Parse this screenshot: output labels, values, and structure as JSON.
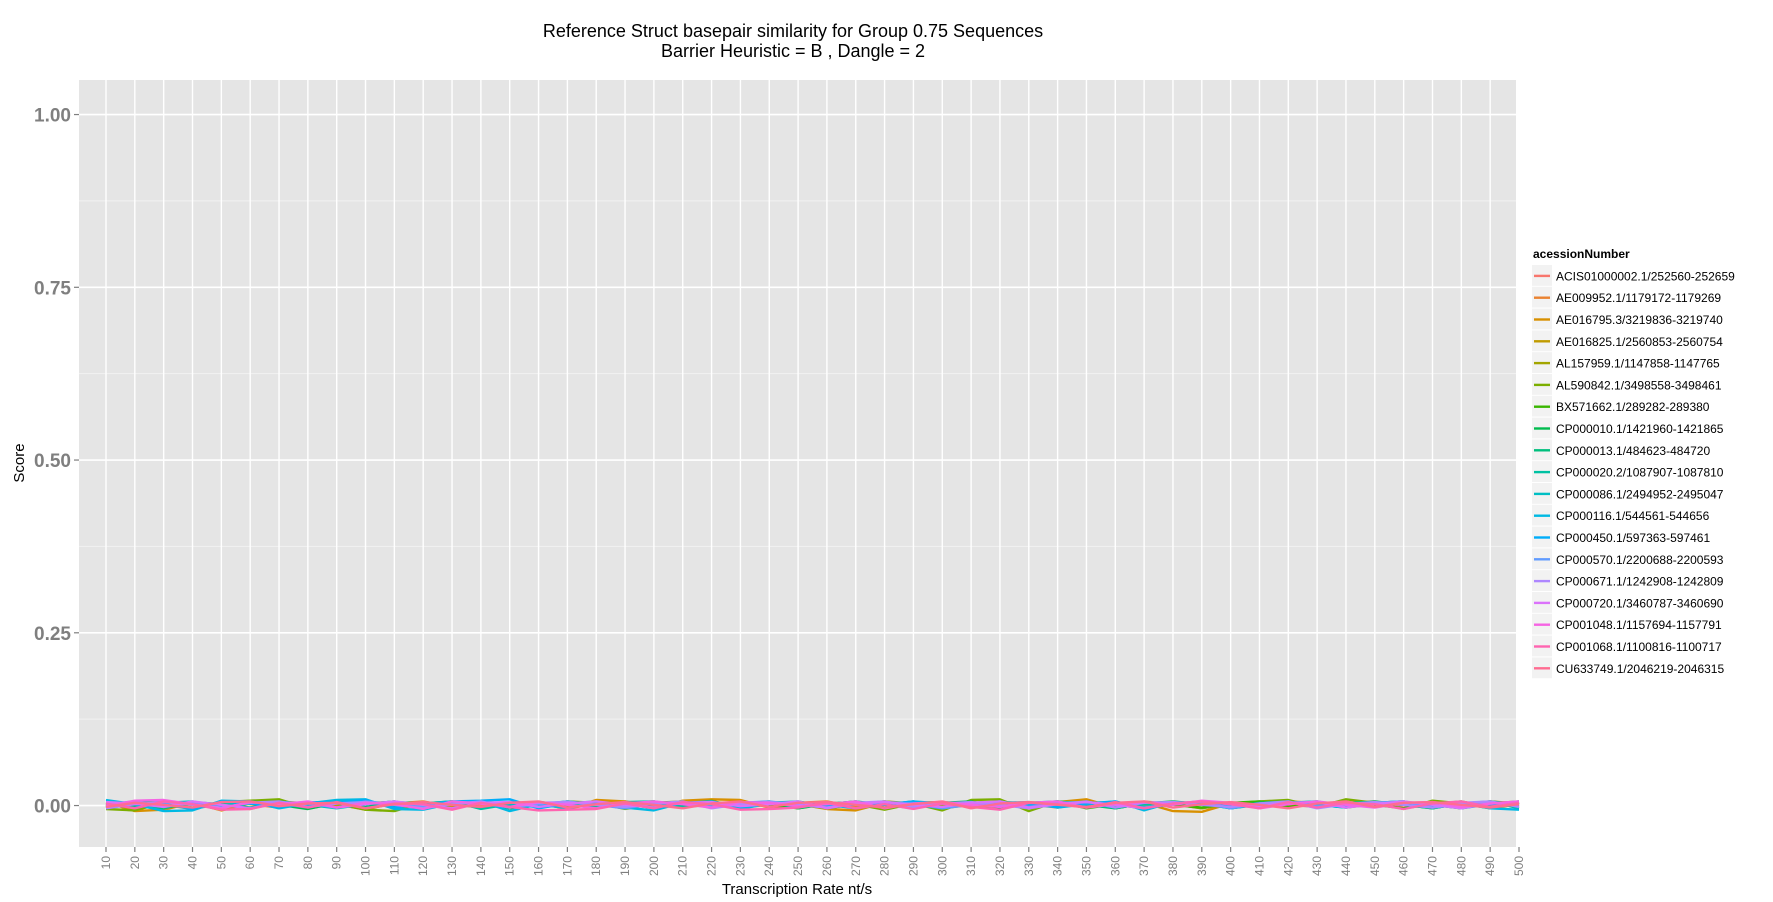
{
  "chart_data": {
    "type": "line",
    "title": "Reference Struct basepair similarity for Group 0.75 Sequences",
    "subtitle": "Barrier Heuristic =  B  , Dangle =  2",
    "xlabel": "Transcription Rate nt/s",
    "ylabel": "Score",
    "ylim": [
      -0.06,
      1.05
    ],
    "yticks": [
      "0.00",
      "0.25",
      "0.50",
      "0.75",
      "1.00"
    ],
    "x": [
      10,
      20,
      30,
      40,
      50,
      60,
      70,
      80,
      90,
      100,
      110,
      120,
      130,
      140,
      150,
      160,
      170,
      180,
      190,
      200,
      210,
      220,
      230,
      240,
      250,
      260,
      270,
      280,
      290,
      300,
      310,
      320,
      330,
      340,
      350,
      360,
      370,
      380,
      390,
      400,
      410,
      420,
      430,
      440,
      450,
      460,
      470,
      480,
      490,
      500
    ],
    "grid": true,
    "legend_title": "acessionNumber",
    "legend_position": "right",
    "note_values": "all series fluctuate between about -0.01 and 0.01",
    "series": [
      {
        "name": "ACIS01000002.1/252560-252659",
        "color": "#F8766D",
        "values": [
          0.003,
          -0.004,
          0.006,
          0.002,
          -0.005,
          0.004,
          0.007,
          -0.002,
          0.003,
          0.005,
          -0.003,
          0.002,
          0.006,
          0.001,
          -0.004,
          0.003,
          0.005,
          -0.002,
          0.004,
          0.002,
          0.006,
          -0.003,
          0.001,
          0.005,
          0.003,
          -0.004,
          0.002,
          0.006,
          -0.001,
          0.004,
          0.003,
          -0.002,
          0.005,
          0.001,
          0.004,
          -0.003,
          0.006,
          0.002,
          -0.004,
          0.003,
          0.005,
          0.001,
          -0.002,
          0.004,
          0.006,
          -0.003,
          0.002,
          0.005,
          0.001,
          0.004
        ]
      },
      {
        "name": "AE009952.1/1179172-1179269",
        "color": "#EA8331",
        "values": [
          -0.002,
          0.004,
          0.001,
          -0.005,
          0.006,
          0.002,
          -0.003,
          0.005,
          0.001,
          -0.004,
          0.003,
          0.006,
          -0.002,
          0.004,
          0.001,
          0.005,
          -0.004,
          0.002,
          0.006,
          -0.001,
          0.003,
          0.005,
          -0.003,
          0.001,
          0.004,
          0.006,
          -0.002,
          0.003,
          0.005,
          -0.004,
          0.001,
          0.006,
          0.002,
          -0.003,
          0.004,
          0.005,
          -0.001,
          0.002,
          0.006,
          -0.004,
          0.003,
          0.001,
          0.005,
          -0.002,
          0.004,
          0.006,
          -0.003,
          0.002,
          0.005,
          0.001
        ]
      },
      {
        "name": "AE016795.3/3219836-3219740",
        "color": "#D89000",
        "values": [
          0.005,
          -0.008,
          -0.006,
          0.004,
          -0.007,
          0.003,
          0.006,
          -0.004,
          0.002,
          -0.006,
          0.004,
          0.001,
          -0.003,
          0.005,
          -0.002,
          0.003,
          -0.005,
          0.008,
          0.006,
          -0.004,
          0.007,
          0.009,
          0.008,
          -0.003,
          0.002,
          -0.005,
          -0.007,
          0.004,
          -0.002,
          0.003,
          0.001,
          -0.004,
          0.002,
          0.005,
          0.009,
          -0.003,
          0.004,
          -0.008,
          -0.009,
          0.003,
          0.001,
          0.006,
          0.004,
          -0.002,
          0.003,
          0.005,
          0.002,
          -0.004,
          0.006,
          0.003
        ]
      },
      {
        "name": "AE016825.1/2560853-2560754",
        "color": "#C09B00",
        "values": [
          -0.003,
          0.002,
          0.005,
          -0.004,
          0.003,
          0.006,
          -0.002,
          0.004,
          0.001,
          -0.005,
          0.003,
          0.002,
          0.006,
          -0.003,
          0.004,
          0.001,
          -0.002,
          0.005,
          0.003,
          -0.004,
          0.006,
          0.002,
          -0.001,
          0.004,
          0.005,
          -0.003,
          0.002,
          0.006,
          0.001,
          -0.004,
          0.003,
          0.005,
          -0.002,
          0.004,
          0.006,
          0.001,
          -0.003,
          0.002,
          0.005,
          -0.004,
          0.003,
          0.006,
          0.001,
          -0.002,
          0.004,
          0.005,
          -0.003,
          0.002,
          0.006,
          0.001
        ]
      },
      {
        "name": "AL157959.1/1147858-1147765",
        "color": "#A3A500",
        "values": [
          0.002,
          0.005,
          -0.003,
          0.004,
          0.001,
          -0.005,
          0.006,
          0.003,
          -0.002,
          0.004,
          0.005,
          -0.001,
          0.003,
          0.006,
          -0.004,
          0.002,
          0.005,
          0.001,
          -0.003,
          0.004,
          0.006,
          -0.002,
          0.003,
          0.005,
          0.001,
          -0.004,
          0.002,
          0.006,
          0.003,
          -0.001,
          0.004,
          0.005,
          -0.003,
          0.002,
          0.006,
          0.001,
          -0.004,
          0.003,
          0.005,
          0.002,
          -0.001,
          0.004,
          0.006,
          -0.003,
          0.002,
          0.005,
          0.001,
          -0.004,
          0.003,
          0.006
        ]
      },
      {
        "name": "AL590842.1/3498558-3498461",
        "color": "#7CAE00",
        "values": [
          -0.005,
          -0.007,
          0.004,
          -0.003,
          0.005,
          0.007,
          0.009,
          -0.004,
          0.003,
          -0.006,
          -0.008,
          0.004,
          0.002,
          -0.003,
          0.005,
          -0.002,
          0.006,
          0.004,
          -0.005,
          0.003,
          0.002,
          0.007,
          -0.004,
          0.005,
          -0.003,
          0.004,
          0.002,
          -0.006,
          0.003,
          -0.007,
          0.008,
          0.009,
          -0.008,
          0.006,
          0.004,
          -0.003,
          0.005,
          0.002,
          -0.004,
          0.003,
          0.006,
          0.008,
          -0.002,
          0.009,
          0.004,
          -0.005,
          0.007,
          0.003,
          -0.004,
          0.002
        ]
      },
      {
        "name": "BX571662.1/289282-289380",
        "color": "#39B600",
        "values": [
          0.003,
          -0.002,
          0.005,
          0.001,
          -0.004,
          0.006,
          0.002,
          -0.003,
          0.004,
          0.005,
          -0.001,
          0.003,
          0.006,
          -0.004,
          0.002,
          0.005,
          0.001,
          -0.003,
          0.004,
          0.006,
          -0.002,
          0.003,
          0.005,
          0.001,
          -0.004,
          0.002,
          0.006,
          -0.003,
          0.004,
          0.005,
          0.001,
          -0.002,
          0.003,
          0.006,
          -0.004,
          0.002,
          0.005,
          0.001,
          -0.003,
          0.004,
          0.006,
          -0.002,
          0.003,
          0.005,
          0.001,
          -0.004,
          0.002,
          0.006,
          -0.003,
          0.004
        ]
      },
      {
        "name": "CP000010.1/1421960-1421865",
        "color": "#00BB4E",
        "values": [
          -0.004,
          0.003,
          0.006,
          0.002,
          -0.003,
          0.005,
          0.001,
          -0.005,
          0.004,
          0.002,
          0.006,
          -0.002,
          0.003,
          0.005,
          -0.004,
          0.001,
          0.006,
          0.002,
          -0.003,
          0.004,
          0.005,
          -0.001,
          0.002,
          0.006,
          -0.004,
          0.003,
          0.005,
          0.001,
          -0.002,
          0.004,
          0.006,
          -0.003,
          0.002,
          0.005,
          0.001,
          -0.004,
          0.003,
          0.006,
          0.002,
          -0.001,
          0.004,
          0.005,
          -0.003,
          0.002,
          0.006,
          0.001,
          -0.004,
          0.003,
          0.005,
          -0.002
        ]
      },
      {
        "name": "CP000013.1/484623-484720",
        "color": "#00BF7D",
        "values": [
          0.004,
          0.001,
          -0.004,
          0.005,
          0.002,
          -0.003,
          0.006,
          0.001,
          0.004,
          -0.002,
          0.005,
          0.003,
          -0.004,
          0.006,
          0.002,
          -0.001,
          0.003,
          0.005,
          -0.003,
          0.004,
          0.001,
          0.006,
          -0.002,
          0.003,
          0.005,
          -0.004,
          0.002,
          0.001,
          0.006,
          -0.003,
          0.004,
          0.005,
          -0.001,
          0.002,
          0.006,
          -0.004,
          0.003,
          0.005,
          0.001,
          -0.002,
          0.004,
          0.006,
          -0.003,
          0.002,
          0.005,
          0.001,
          -0.004,
          0.003,
          0.006,
          0.002
        ]
      },
      {
        "name": "CP000020.2/1087907-1087810",
        "color": "#00C1A3",
        "values": [
          -0.002,
          0.005,
          0.003,
          -0.004,
          0.001,
          0.006,
          0.002,
          -0.003,
          0.005,
          0.004,
          -0.001,
          0.003,
          0.006,
          -0.005,
          0.002,
          0.004,
          0.001,
          -0.003,
          0.005,
          0.006,
          -0.002,
          0.001,
          0.004,
          0.005,
          -0.003,
          0.002,
          0.006,
          0.001,
          -0.004,
          0.003,
          0.005,
          -0.002,
          0.004,
          0.006,
          0.001,
          -0.003,
          0.002,
          0.005,
          0.003,
          -0.004,
          0.001,
          0.006,
          -0.002,
          0.004,
          0.005,
          0.001,
          -0.003,
          0.002,
          0.006,
          -0.004
        ]
      },
      {
        "name": "CP000086.1/2494952-2495047",
        "color": "#00BFC4",
        "values": [
          0.001,
          -0.003,
          0.004,
          0.006,
          -0.002,
          0.003,
          0.005,
          0.001,
          -0.004,
          0.002,
          0.006,
          -0.003,
          0.004,
          0.005,
          0.001,
          -0.002,
          0.003,
          0.006,
          -0.004,
          0.002,
          0.005,
          0.001,
          -0.003,
          0.004,
          0.006,
          -0.002,
          0.003,
          0.005,
          0.001,
          -0.004,
          0.002,
          0.006,
          -0.003,
          0.004,
          0.005,
          0.001,
          -0.002,
          0.003,
          0.006,
          -0.004,
          0.002,
          0.005,
          0.001,
          -0.003,
          0.004,
          0.006,
          -0.002,
          0.003,
          0.005,
          0.001
        ]
      },
      {
        "name": "CP000116.1/544561-544656",
        "color": "#00B9E3",
        "values": [
          0.008,
          0.002,
          -0.008,
          -0.007,
          0.007,
          0.006,
          -0.004,
          0.003,
          0.008,
          0.009,
          -0.005,
          -0.006,
          0.003,
          0.006,
          -0.008,
          0.002,
          -0.004,
          0.005,
          -0.003,
          -0.007,
          0.004,
          0.002,
          -0.005,
          0.003,
          0.005,
          -0.002,
          0.004,
          0.001,
          0.006,
          0.003,
          -0.002,
          0.004,
          0.005,
          -0.003,
          0.002,
          0.006,
          -0.007,
          0.005,
          0.003,
          -0.004,
          0.002,
          0.005,
          0.001,
          -0.003,
          0.004,
          0.006,
          -0.002,
          0.003,
          -0.004,
          -0.006
        ]
      },
      {
        "name": "CP000450.1/597363-597461",
        "color": "#00ADFA",
        "values": [
          -0.003,
          0.004,
          0.002,
          -0.005,
          0.006,
          0.003,
          -0.002,
          0.005,
          0.004,
          0.008,
          -0.003,
          0.002,
          0.006,
          0.007,
          0.009,
          -0.004,
          0.003,
          0.005,
          0.001,
          -0.003,
          0.004,
          0.006,
          -0.002,
          0.003,
          0.005,
          0.001,
          -0.004,
          0.002,
          0.006,
          -0.003,
          0.004,
          0.005,
          0.001,
          -0.002,
          0.003,
          0.006,
          -0.004,
          0.002,
          0.005,
          0.001,
          -0.003,
          0.004,
          0.006,
          -0.002,
          0.003,
          0.005,
          0.001,
          -0.004,
          0.002,
          0.006
        ]
      },
      {
        "name": "CP000570.1/2200688-2200593",
        "color": "#619CFF",
        "values": [
          0.002,
          0.006,
          -0.002,
          0.004,
          0.001,
          -0.004,
          0.005,
          0.003,
          -0.003,
          0.006,
          0.002,
          -0.001,
          0.004,
          0.005,
          -0.003,
          0.002,
          0.006,
          0.001,
          -0.004,
          0.003,
          0.005,
          -0.002,
          0.004,
          0.006,
          0.001,
          -0.003,
          0.002,
          0.005,
          0.003,
          -0.004,
          0.001,
          0.006,
          -0.002,
          0.004,
          0.005,
          0.001,
          -0.003,
          0.002,
          0.006,
          -0.004,
          0.003,
          0.005,
          -0.001,
          0.002,
          0.004,
          0.006,
          -0.003,
          0.001,
          0.005,
          0.002
        ]
      },
      {
        "name": "CP000671.1/1242908-1242809",
        "color": "#AE87FF",
        "values": [
          -0.004,
          0.002,
          0.005,
          0.001,
          -0.003,
          0.004,
          0.006,
          -0.002,
          0.003,
          0.005,
          0.001,
          -0.004,
          0.002,
          0.006,
          -0.003,
          0.004,
          0.005,
          0.001,
          -0.002,
          0.003,
          0.006,
          -0.004,
          0.002,
          0.005,
          0.001,
          -0.003,
          0.004,
          0.006,
          -0.002,
          0.003,
          0.005,
          0.001,
          -0.004,
          0.002,
          0.006,
          -0.003,
          0.004,
          0.005,
          0.001,
          -0.002,
          0.003,
          0.006,
          -0.004,
          0.002,
          0.005,
          0.001,
          -0.003,
          0.004,
          0.006,
          -0.002
        ]
      },
      {
        "name": "CP000720.1/3460787-3460690",
        "color": "#DB72FB",
        "values": [
          0.005,
          0.003,
          -0.002,
          0.006,
          0.001,
          -0.004,
          0.003,
          0.005,
          -0.003,
          0.002,
          0.006,
          0.001,
          -0.004,
          0.004,
          0.005,
          -0.002,
          0.003,
          0.006,
          0.001,
          -0.003,
          0.004,
          0.005,
          -0.001,
          0.002,
          0.006,
          -0.004,
          0.003,
          0.005,
          0.001,
          -0.002,
          0.004,
          0.006,
          -0.003,
          0.002,
          0.005,
          0.001,
          -0.004,
          0.003,
          0.006,
          0.002,
          -0.001,
          0.004,
          0.005,
          -0.003,
          0.002,
          0.006,
          0.001,
          -0.004,
          0.003,
          0.005
        ]
      },
      {
        "name": "CP001048.1/1157694-1157791",
        "color": "#F564E3",
        "values": [
          -0.001,
          0.007,
          0.008,
          0.002,
          -0.004,
          0.005,
          0.001,
          0.006,
          -0.003,
          0.004,
          0.002,
          -0.005,
          0.006,
          0.003,
          -0.002,
          0.005,
          0.001,
          -0.004,
          0.003,
          0.006,
          0.002,
          -0.003,
          0.005,
          0.004,
          -0.001,
          0.002,
          0.006,
          -0.004,
          0.003,
          0.005,
          0.001,
          -0.002,
          0.004,
          0.006,
          -0.003,
          0.002,
          0.005,
          0.001,
          0.007,
          0.004,
          -0.004,
          0.002,
          0.006,
          0.001,
          -0.003,
          0.004,
          0.005,
          -0.002,
          0.003,
          0.006
        ]
      },
      {
        "name": "CP001068.1/1100816-1100717",
        "color": "#FF64B0",
        "values": [
          0.003,
          -0.004,
          0.006,
          0.002,
          -0.006,
          -0.005,
          0.004,
          -0.003,
          0.005,
          -0.004,
          0.003,
          0.002,
          -0.006,
          0.004,
          -0.002,
          -0.007,
          -0.006,
          -0.005,
          0.003,
          -0.004,
          0.005,
          0.002,
          -0.006,
          -0.005,
          -0.003,
          0.004,
          -0.004,
          0.002,
          -0.005,
          0.003,
          -0.002,
          -0.006,
          0.004,
          0.002,
          -0.003,
          0.005,
          -0.004,
          0.003,
          0.006,
          0.002,
          -0.004,
          0.005,
          -0.003,
          0.004,
          0.002,
          -0.005,
          0.003,
          0.006,
          -0.002,
          0.004
        ]
      },
      {
        "name": "CU633749.1/2046219-2046315",
        "color": "#FF6C91",
        "values": [
          -0.002,
          0.004,
          0.001,
          -0.003,
          0.005,
          0.006,
          -0.001,
          0.003,
          0.004,
          -0.004,
          0.002,
          0.005,
          0.001,
          -0.002,
          0.004,
          0.006,
          -0.003,
          0.002,
          0.005,
          0.001,
          -0.004,
          0.003,
          0.006,
          -0.002,
          0.004,
          0.005,
          0.001,
          -0.003,
          0.002,
          0.006,
          -0.004,
          0.003,
          0.005,
          0.001,
          -0.002,
          0.004,
          0.006,
          -0.003,
          0.002,
          0.005,
          0.001,
          -0.004,
          0.003,
          0.006,
          -0.002,
          0.004,
          0.005,
          0.001,
          -0.003,
          0.002
        ]
      }
    ]
  }
}
